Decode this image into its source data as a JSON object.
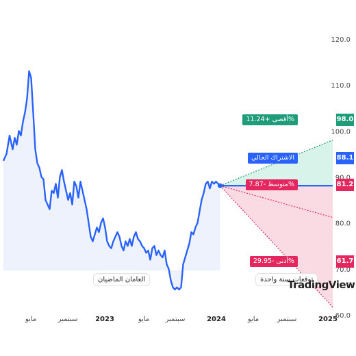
{
  "colors": {
    "line": "#2962ff",
    "area_fill": "#e8eefc",
    "max": "#1f9d7a",
    "current": "#2962ff",
    "avg": "#e5275f",
    "min": "#e5275f",
    "max_band": "#d7f3ea",
    "min_band": "#fadbe3"
  },
  "labels": {
    "past_period": "العامان الماضيان",
    "forecast_period": "توقعات سنة واحدة",
    "logo": "TradingView"
  },
  "forecast": {
    "max": {
      "label": "أقصى +11.24%",
      "value": "98.0"
    },
    "current": {
      "label": "الاشتراك الحالي",
      "value": "88.1"
    },
    "avg": {
      "label": "متوسط -7.87%",
      "value": "81.2"
    },
    "min": {
      "label": "أدنى -29.95%",
      "value": "61.7"
    }
  },
  "chart_data": {
    "type": "line",
    "title": "",
    "xlabel": "",
    "ylabel": "",
    "ylim": [
      60,
      124
    ],
    "yticks": [
      "120.0",
      "110.0",
      "100.0",
      "90.0",
      "80.0",
      "70.0",
      "60.0"
    ],
    "xticks": [
      "مايو",
      "سبتمبر",
      "2023",
      "مايو",
      "سبتمبر",
      "2024",
      "مايو",
      "سبتمبر",
      "2025"
    ],
    "xticks_bold": [
      "2023",
      "2024",
      "2025"
    ],
    "xrange": [
      0,
      32
    ],
    "series": [
      {
        "values_x": [
          0,
          0.3,
          0.6,
          0.9,
          1.1,
          1.3,
          1.5,
          1.7,
          1.9,
          2.1,
          2.3,
          2.5,
          2.7,
          2.9,
          3.1,
          3.3,
          3.5,
          3.7,
          3.9,
          4.1,
          4.3,
          4.5,
          4.7,
          4.9,
          5.1,
          5.3,
          5.5,
          5.7,
          5.9,
          6.1,
          6.3,
          6.5,
          6.7,
          6.9,
          7.1,
          7.3,
          7.5,
          7.7,
          7.9,
          8.1,
          8.3,
          8.5,
          8.7,
          8.9,
          9.1,
          9.3,
          9.5,
          9.7,
          9.9,
          10.1,
          10.3,
          10.5,
          10.7,
          10.9,
          11.1,
          11.3,
          11.5,
          11.7,
          11.9,
          12.1,
          12.3,
          12.5,
          12.7,
          12.9,
          13.1,
          13.3,
          13.5,
          13.7,
          13.9,
          14.1,
          14.3,
          14.5,
          14.7,
          14.9,
          15.1,
          15.3,
          15.5,
          15.7,
          15.9,
          16.1,
          16.3,
          16.5,
          16.7,
          16.9,
          17.1,
          17.3,
          17.5,
          17.7,
          17.9,
          18.1,
          18.3,
          18.5,
          18.7,
          18.9,
          19.1,
          19.3,
          19.5,
          19.7,
          19.9,
          20.1,
          20.3,
          20.5,
          20.7,
          20.9,
          21.1
        ],
        "values": [
          93.5,
          95,
          99,
          96,
          98.5,
          97,
          100,
          99,
          102,
          104,
          107,
          113,
          111.5,
          104,
          96,
          93,
          92,
          90,
          89.5,
          85,
          84,
          83,
          87,
          86.5,
          88.5,
          85.5,
          90,
          91.5,
          89,
          87,
          85,
          86.5,
          84,
          89,
          88,
          85.5,
          89,
          87,
          85,
          83,
          80,
          77,
          76,
          77.5,
          79,
          78,
          80,
          81,
          79,
          76,
          75,
          74.5,
          76,
          77,
          78,
          77,
          75,
          74,
          76,
          75,
          76.5,
          75,
          77,
          78,
          76.5,
          76,
          75,
          74.5,
          73.5,
          74,
          72,
          74.5,
          75,
          73,
          74,
          73,
          72.5,
          74,
          71,
          70,
          67.5,
          66,
          65.5,
          66,
          65.5,
          66,
          71,
          72.5,
          74,
          75.5,
          78,
          77.5,
          79,
          80,
          82.5,
          85,
          86.5,
          88.5,
          89,
          87.5,
          89,
          88.5,
          89,
          88.5,
          88.1
        ]
      }
    ]
  }
}
